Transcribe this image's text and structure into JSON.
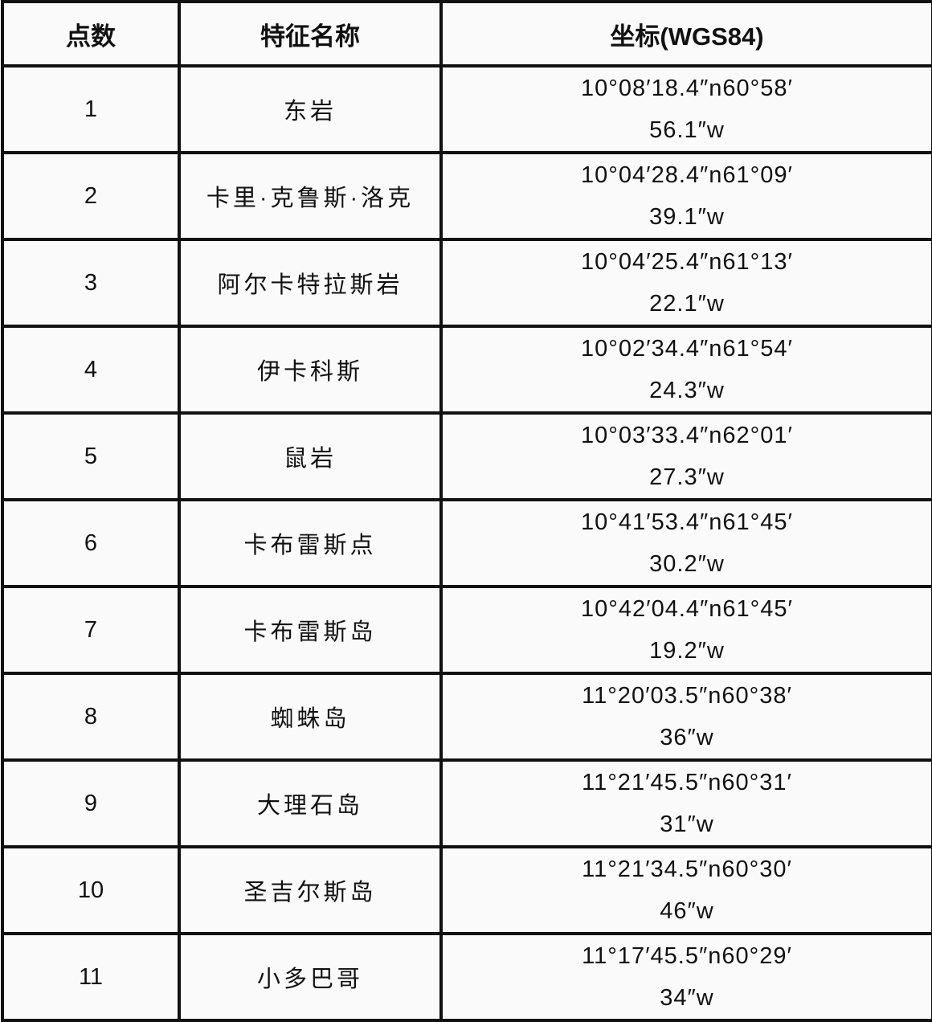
{
  "table": {
    "headers": [
      "点数",
      "特征名称",
      "坐标(WGS84)"
    ],
    "rows": [
      {
        "point": "1",
        "name": "东岩",
        "coord_line1": "10°08′18.4″n60°58′",
        "coord_line2": "56.1″w"
      },
      {
        "point": "2",
        "name": "卡里·克鲁斯·洛克",
        "coord_line1": "10°04′28.4″n61°09′",
        "coord_line2": "39.1″w"
      },
      {
        "point": "3",
        "name": "阿尔卡特拉斯岩",
        "coord_line1": "10°04′25.4″n61°13′",
        "coord_line2": "22.1″w"
      },
      {
        "point": "4",
        "name": "伊卡科斯",
        "coord_line1": "10°02′34.4″n61°54′",
        "coord_line2": "24.3″w"
      },
      {
        "point": "5",
        "name": "鼠岩",
        "coord_line1": "10°03′33.4″n62°01′",
        "coord_line2": "27.3″w"
      },
      {
        "point": "6",
        "name": "卡布雷斯点",
        "coord_line1": "10°41′53.4″n61°45′",
        "coord_line2": "30.2″w"
      },
      {
        "point": "7",
        "name": "卡布雷斯岛",
        "coord_line1": "10°42′04.4″n61°45′",
        "coord_line2": "19.2″w"
      },
      {
        "point": "8",
        "name": "蜘蛛岛",
        "coord_line1": "11°20′03.5″n60°38′",
        "coord_line2": "36″w"
      },
      {
        "point": "9",
        "name": "大理石岛",
        "coord_line1": "11°21′45.5″n60°31′",
        "coord_line2": "31″w"
      },
      {
        "point": "10",
        "name": "圣吉尔斯岛",
        "coord_line1": "11°21′34.5″n60°30′",
        "coord_line2": "46″w"
      },
      {
        "point": "11",
        "name": "小多巴哥",
        "coord_line1": "11°17′45.5″n60°29′",
        "coord_line2": "34″w"
      }
    ]
  }
}
